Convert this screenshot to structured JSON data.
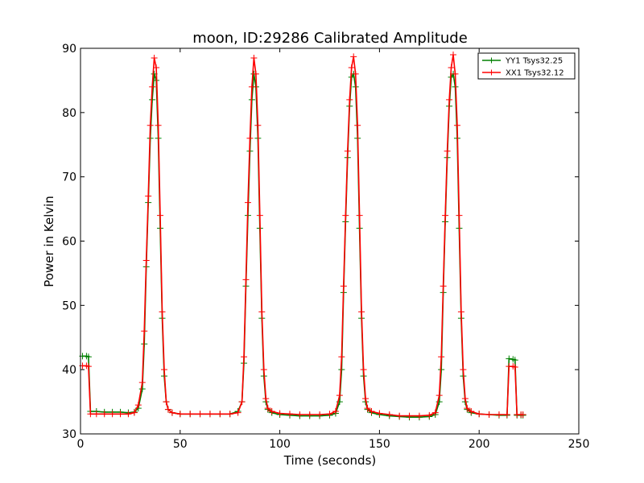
{
  "chart_data": {
    "type": "line",
    "title": "moon, ID:29286 Calibrated Amplitude",
    "xlabel": "Time (seconds)",
    "ylabel": "Power in Kelvin",
    "xlim": [
      0,
      250
    ],
    "ylim": [
      30,
      90
    ],
    "xticks": [
      "0",
      "50",
      "100",
      "150",
      "200",
      "250"
    ],
    "yticks": [
      "30",
      "40",
      "50",
      "60",
      "70",
      "80",
      "90"
    ],
    "grid": false,
    "legend_position": "top-right",
    "marker": "+",
    "series": [
      {
        "name": "YY1 Tsys32.25",
        "color": "#008000",
        "points": [
          [
            1,
            42.1
          ],
          [
            3,
            42.1
          ],
          [
            4,
            42.0
          ],
          [
            5,
            33.5
          ],
          [
            8,
            33.5
          ],
          [
            12,
            33.4
          ],
          [
            16,
            33.4
          ],
          [
            20,
            33.4
          ],
          [
            24,
            33.3
          ],
          [
            27,
            33.4
          ],
          [
            29,
            34.0
          ],
          [
            31,
            37.0
          ],
          [
            32,
            44.0
          ],
          [
            33,
            56.0
          ],
          [
            34,
            66.0
          ],
          [
            35,
            76.0
          ],
          [
            36,
            82.0
          ],
          [
            37,
            86.0
          ],
          [
            38,
            85.0
          ],
          [
            39,
            76.0
          ],
          [
            40,
            62.0
          ],
          [
            41,
            48.0
          ],
          [
            42,
            39.0
          ],
          [
            43,
            35.0
          ],
          [
            44,
            33.8
          ],
          [
            46,
            33.3
          ],
          [
            50,
            33.1
          ],
          [
            55,
            33.1
          ],
          [
            60,
            33.1
          ],
          [
            65,
            33.1
          ],
          [
            70,
            33.1
          ],
          [
            75,
            33.1
          ],
          [
            79,
            33.5
          ],
          [
            81,
            35.0
          ],
          [
            82,
            41.0
          ],
          [
            83,
            53.0
          ],
          [
            84,
            64.0
          ],
          [
            85,
            74.0
          ],
          [
            86,
            82.0
          ],
          [
            87,
            86.0
          ],
          [
            88,
            84.0
          ],
          [
            89,
            76.0
          ],
          [
            90,
            62.0
          ],
          [
            91,
            48.0
          ],
          [
            92,
            39.0
          ],
          [
            93,
            35.0
          ],
          [
            94,
            33.8
          ],
          [
            96,
            33.3
          ],
          [
            100,
            33.0
          ],
          [
            105,
            32.9
          ],
          [
            110,
            32.8
          ],
          [
            115,
            32.8
          ],
          [
            120,
            32.8
          ],
          [
            125,
            32.9
          ],
          [
            128,
            33.2
          ],
          [
            130,
            35.0
          ],
          [
            131,
            40.0
          ],
          [
            132,
            52.0
          ],
          [
            133,
            63.0
          ],
          [
            134,
            73.0
          ],
          [
            135,
            81.0
          ],
          [
            136,
            85.5
          ],
          [
            137,
            86.0
          ],
          [
            138,
            84.0
          ],
          [
            139,
            76.0
          ],
          [
            140,
            62.0
          ],
          [
            141,
            48.0
          ],
          [
            142,
            39.0
          ],
          [
            143,
            35.0
          ],
          [
            144,
            33.8
          ],
          [
            146,
            33.3
          ],
          [
            150,
            33.0
          ],
          [
            155,
            32.8
          ],
          [
            160,
            32.7
          ],
          [
            165,
            32.6
          ],
          [
            170,
            32.6
          ],
          [
            175,
            32.7
          ],
          [
            178,
            33.0
          ],
          [
            180,
            35.0
          ],
          [
            181,
            40.0
          ],
          [
            182,
            52.0
          ],
          [
            183,
            63.0
          ],
          [
            184,
            73.0
          ],
          [
            185,
            81.0
          ],
          [
            186,
            85.5
          ],
          [
            187,
            86.0
          ],
          [
            188,
            84.0
          ],
          [
            189,
            76.0
          ],
          [
            190,
            62.0
          ],
          [
            191,
            48.0
          ],
          [
            192,
            39.0
          ],
          [
            193,
            35.0
          ],
          [
            194,
            33.8
          ],
          [
            196,
            33.3
          ],
          [
            200,
            33.1
          ],
          [
            205,
            33.0
          ],
          [
            210,
            32.9
          ],
          [
            214,
            32.9
          ],
          [
            215,
            41.7
          ],
          [
            217,
            41.6
          ],
          [
            218,
            41.5
          ],
          [
            219,
            32.9
          ],
          [
            221,
            32.9
          ],
          [
            222,
            32.9
          ]
        ]
      },
      {
        "name": "XX1 Tsys32.12",
        "color": "#ff0000",
        "points": [
          [
            1,
            40.6
          ],
          [
            3,
            40.6
          ],
          [
            4,
            40.5
          ],
          [
            5,
            33.1
          ],
          [
            8,
            33.1
          ],
          [
            12,
            33.1
          ],
          [
            16,
            33.1
          ],
          [
            20,
            33.1
          ],
          [
            24,
            33.1
          ],
          [
            27,
            33.3
          ],
          [
            29,
            34.5
          ],
          [
            31,
            38.0
          ],
          [
            32,
            46.0
          ],
          [
            33,
            57.0
          ],
          [
            34,
            67.0
          ],
          [
            35,
            78.0
          ],
          [
            36,
            84.0
          ],
          [
            37,
            88.5
          ],
          [
            38,
            87.0
          ],
          [
            39,
            78.0
          ],
          [
            40,
            64.0
          ],
          [
            41,
            49.0
          ],
          [
            42,
            40.0
          ],
          [
            43,
            35.0
          ],
          [
            44,
            33.8
          ],
          [
            46,
            33.3
          ],
          [
            50,
            33.1
          ],
          [
            55,
            33.1
          ],
          [
            60,
            33.1
          ],
          [
            65,
            33.1
          ],
          [
            70,
            33.1
          ],
          [
            75,
            33.1
          ],
          [
            79,
            33.3
          ],
          [
            81,
            35.0
          ],
          [
            82,
            42.0
          ],
          [
            83,
            54.0
          ],
          [
            84,
            66.0
          ],
          [
            85,
            76.0
          ],
          [
            86,
            84.0
          ],
          [
            87,
            88.5
          ],
          [
            88,
            86.0
          ],
          [
            89,
            78.0
          ],
          [
            90,
            64.0
          ],
          [
            91,
            49.0
          ],
          [
            92,
            40.0
          ],
          [
            93,
            35.5
          ],
          [
            94,
            34.0
          ],
          [
            96,
            33.5
          ],
          [
            100,
            33.2
          ],
          [
            105,
            33.1
          ],
          [
            110,
            33.0
          ],
          [
            115,
            33.0
          ],
          [
            120,
            33.0
          ],
          [
            125,
            33.1
          ],
          [
            128,
            33.5
          ],
          [
            130,
            36.0
          ],
          [
            131,
            42.0
          ],
          [
            132,
            53.0
          ],
          [
            133,
            64.0
          ],
          [
            134,
            74.0
          ],
          [
            135,
            82.0
          ],
          [
            136,
            87.0
          ],
          [
            137,
            88.7
          ],
          [
            138,
            86.0
          ],
          [
            139,
            78.0
          ],
          [
            140,
            64.0
          ],
          [
            141,
            49.0
          ],
          [
            142,
            40.0
          ],
          [
            143,
            35.5
          ],
          [
            144,
            34.0
          ],
          [
            146,
            33.5
          ],
          [
            150,
            33.2
          ],
          [
            155,
            33.0
          ],
          [
            160,
            32.8
          ],
          [
            165,
            32.8
          ],
          [
            170,
            32.8
          ],
          [
            175,
            32.9
          ],
          [
            178,
            33.3
          ],
          [
            180,
            36.0
          ],
          [
            181,
            42.0
          ],
          [
            182,
            53.0
          ],
          [
            183,
            64.0
          ],
          [
            184,
            74.0
          ],
          [
            185,
            82.0
          ],
          [
            186,
            87.0
          ],
          [
            187,
            89.0
          ],
          [
            188,
            86.0
          ],
          [
            189,
            78.0
          ],
          [
            190,
            64.0
          ],
          [
            191,
            49.0
          ],
          [
            192,
            40.0
          ],
          [
            193,
            35.5
          ],
          [
            194,
            34.0
          ],
          [
            196,
            33.5
          ],
          [
            200,
            33.1
          ],
          [
            205,
            33.0
          ],
          [
            210,
            33.0
          ],
          [
            214,
            33.0
          ],
          [
            215,
            40.5
          ],
          [
            217,
            40.5
          ],
          [
            218,
            40.4
          ],
          [
            219,
            33.0
          ],
          [
            221,
            33.0
          ],
          [
            222,
            33.0
          ]
        ]
      }
    ]
  }
}
